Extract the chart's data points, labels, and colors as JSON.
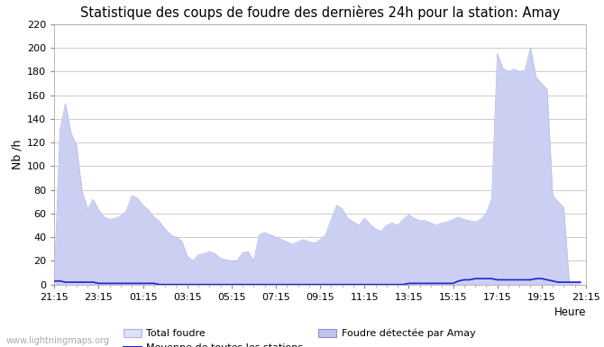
{
  "title": "Statistique des coups de foudre des dernières 24h pour la station: Amay",
  "xlabel": "Heure",
  "ylabel": "Nb /h",
  "xlim": [
    0,
    95
  ],
  "ylim": [
    0,
    220
  ],
  "yticks": [
    0,
    20,
    40,
    60,
    80,
    100,
    120,
    140,
    160,
    180,
    200,
    220
  ],
  "xtick_labels": [
    "21:15",
    "23:15",
    "01:15",
    "03:15",
    "05:15",
    "07:15",
    "09:15",
    "11:15",
    "13:15",
    "15:15",
    "17:15",
    "19:15",
    "21:15"
  ],
  "xtick_positions": [
    0,
    8,
    16,
    24,
    32,
    40,
    48,
    56,
    64,
    72,
    80,
    88,
    96
  ],
  "watermark": "www.lightningmaps.org",
  "bg_color": "#ffffff",
  "grid_color": "#cccccc",
  "total_foudre_color": "#dce0f8",
  "foudre_amay_color": "#c0c4ee",
  "moyenne_color": "#2222cc",
  "total_foudre_data": [
    3,
    130,
    153,
    128,
    118,
    79,
    64,
    72,
    63,
    57,
    55,
    56,
    58,
    62,
    75,
    73,
    67,
    63,
    57,
    53,
    47,
    42,
    40,
    37,
    24,
    20,
    25,
    26,
    28,
    26,
    22,
    21,
    20,
    20,
    27,
    28,
    20,
    42,
    44,
    42,
    40,
    38,
    36,
    34,
    36,
    38,
    36,
    35,
    38,
    42,
    55,
    67,
    64,
    56,
    53,
    50,
    56,
    51,
    47,
    45,
    50,
    52,
    50,
    55,
    59,
    56,
    54,
    54,
    52,
    50,
    52,
    53,
    55,
    57,
    55,
    54,
    53,
    55,
    60,
    73,
    195,
    183,
    180,
    182,
    180,
    181,
    200,
    175,
    170,
    165,
    75,
    70,
    65,
    2,
    2,
    2
  ],
  "foudre_amay_data": [
    3,
    130,
    153,
    128,
    118,
    79,
    64,
    72,
    63,
    57,
    55,
    56,
    58,
    62,
    75,
    73,
    67,
    63,
    57,
    53,
    47,
    42,
    40,
    37,
    24,
    20,
    25,
    26,
    28,
    26,
    22,
    21,
    20,
    20,
    27,
    28,
    20,
    42,
    44,
    42,
    40,
    38,
    36,
    34,
    36,
    38,
    36,
    35,
    38,
    42,
    55,
    67,
    64,
    56,
    53,
    50,
    56,
    51,
    47,
    45,
    50,
    52,
    50,
    55,
    59,
    56,
    54,
    54,
    52,
    50,
    52,
    53,
    55,
    57,
    55,
    54,
    53,
    55,
    60,
    73,
    195,
    183,
    180,
    182,
    180,
    181,
    200,
    175,
    170,
    165,
    75,
    70,
    65,
    2,
    2,
    2
  ],
  "moyenne_data": [
    3,
    3,
    2,
    2,
    2,
    2,
    2,
    2,
    1,
    1,
    1,
    1,
    1,
    1,
    1,
    1,
    1,
    1,
    1,
    0,
    0,
    0,
    0,
    0,
    0,
    0,
    0,
    0,
    0,
    0,
    0,
    0,
    0,
    0,
    0,
    0,
    0,
    0,
    0,
    0,
    0,
    0,
    0,
    0,
    0,
    0,
    0,
    0,
    0,
    0,
    0,
    0,
    0,
    0,
    0,
    0,
    0,
    0,
    0,
    0,
    0,
    0,
    0,
    0,
    1,
    1,
    1,
    1,
    1,
    1,
    1,
    1,
    1,
    3,
    4,
    4,
    5,
    5,
    5,
    5,
    4,
    4,
    4,
    4,
    4,
    4,
    4,
    5,
    5,
    4,
    3,
    2,
    2,
    2,
    2,
    2
  ]
}
